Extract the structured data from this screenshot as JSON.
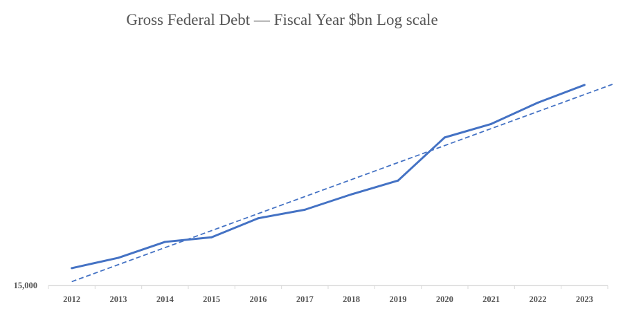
{
  "chart_data": {
    "type": "line",
    "title": "Gross Federal Debt — Fiscal Year $bn Log scale",
    "xlabel": "",
    "ylabel": "",
    "y_scale": "log",
    "ylim": [
      15000,
      37300
    ],
    "y_tick_labels": [
      "15,000"
    ],
    "grid": false,
    "legend": "none",
    "categories": [
      "2012",
      "2013",
      "2014",
      "2015",
      "2016",
      "2017",
      "2018",
      "2019",
      "2020",
      "2021",
      "2022",
      "2023"
    ],
    "series": [
      {
        "values": [
          16066,
          16738,
          17824,
          18151,
          19573,
          20245,
          21516,
          22719,
          26945,
          28428,
          30929,
          33167
        ],
        "color": "#4472C4",
        "style": "solid"
      }
    ],
    "trendline": {
      "type": "exponential",
      "color": "#4472C4",
      "style": "dashed"
    }
  }
}
